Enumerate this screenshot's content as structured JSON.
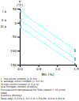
{
  "chart_data": {
    "type": "line",
    "x_label": "Mn (%)",
    "y_label": "T\n(°C)",
    "xlim": [
      0,
      1.5
    ],
    "ylim": [
      -150,
      50
    ],
    "xticks": [
      {
        "value": 0,
        "label": "0.0"
      },
      0.5,
      {
        "value": 1.0,
        "label": "1.0"
      },
      1.5
    ],
    "yticks": [
      50,
      0,
      -50,
      -100,
      -150
    ],
    "series": [
      {
        "name": "I a",
        "x": [
          0.0,
          1.5
        ],
        "values": [
          40,
          -100
        ],
        "color": "cyan",
        "marker": "square",
        "line_style": "dotted"
      },
      {
        "name": "II a",
        "x": [
          0.0,
          1.5
        ],
        "values": [
          10,
          -130
        ],
        "color": "cyan",
        "marker": "square",
        "line_style": "dotted"
      },
      {
        "name": "III a",
        "x": [
          0.0,
          1.5
        ],
        "values": [
          -15,
          -150
        ],
        "color": "cyan",
        "marker": "square",
        "line_style": "dotted"
      }
    ],
    "footnotes": [
      "I   low silicon content (< 0.1%)",
      "II  average silicon content (= 0.2 %)",
      "III high silicon content (= 0.4 %)",
      "Low nitrogen content (0.005%)",
      "Full transition temperature for 50% impact = 35 J/cm2",
      "Steel",
      "G-AlSiCu (Rimmy)",
      "Base steel: 0.15% C, 0.5-1 or 1.5%-Mn, 0.0 or 0.4% Si"
    ],
    "background": "#ffffff"
  }
}
